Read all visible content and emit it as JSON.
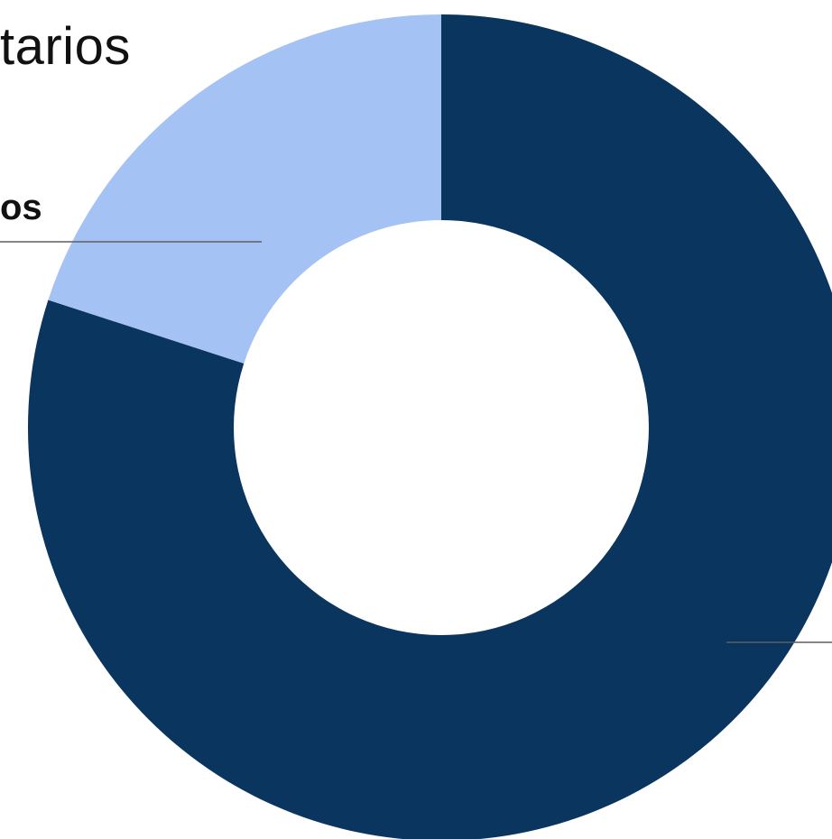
{
  "chart_data": {
    "type": "pie",
    "variant": "donut",
    "title": "tarios",
    "series": [
      {
        "values": [
          20,
          80
        ],
        "labels": [
          "os",
          ""
        ],
        "colors": [
          "#a4c2f4",
          "#0a355f"
        ]
      }
    ],
    "legend": "none",
    "grid": false
  },
  "colors": {
    "background": "#ffffff",
    "leader_line": "#5f5f5f",
    "text": "#111111"
  }
}
